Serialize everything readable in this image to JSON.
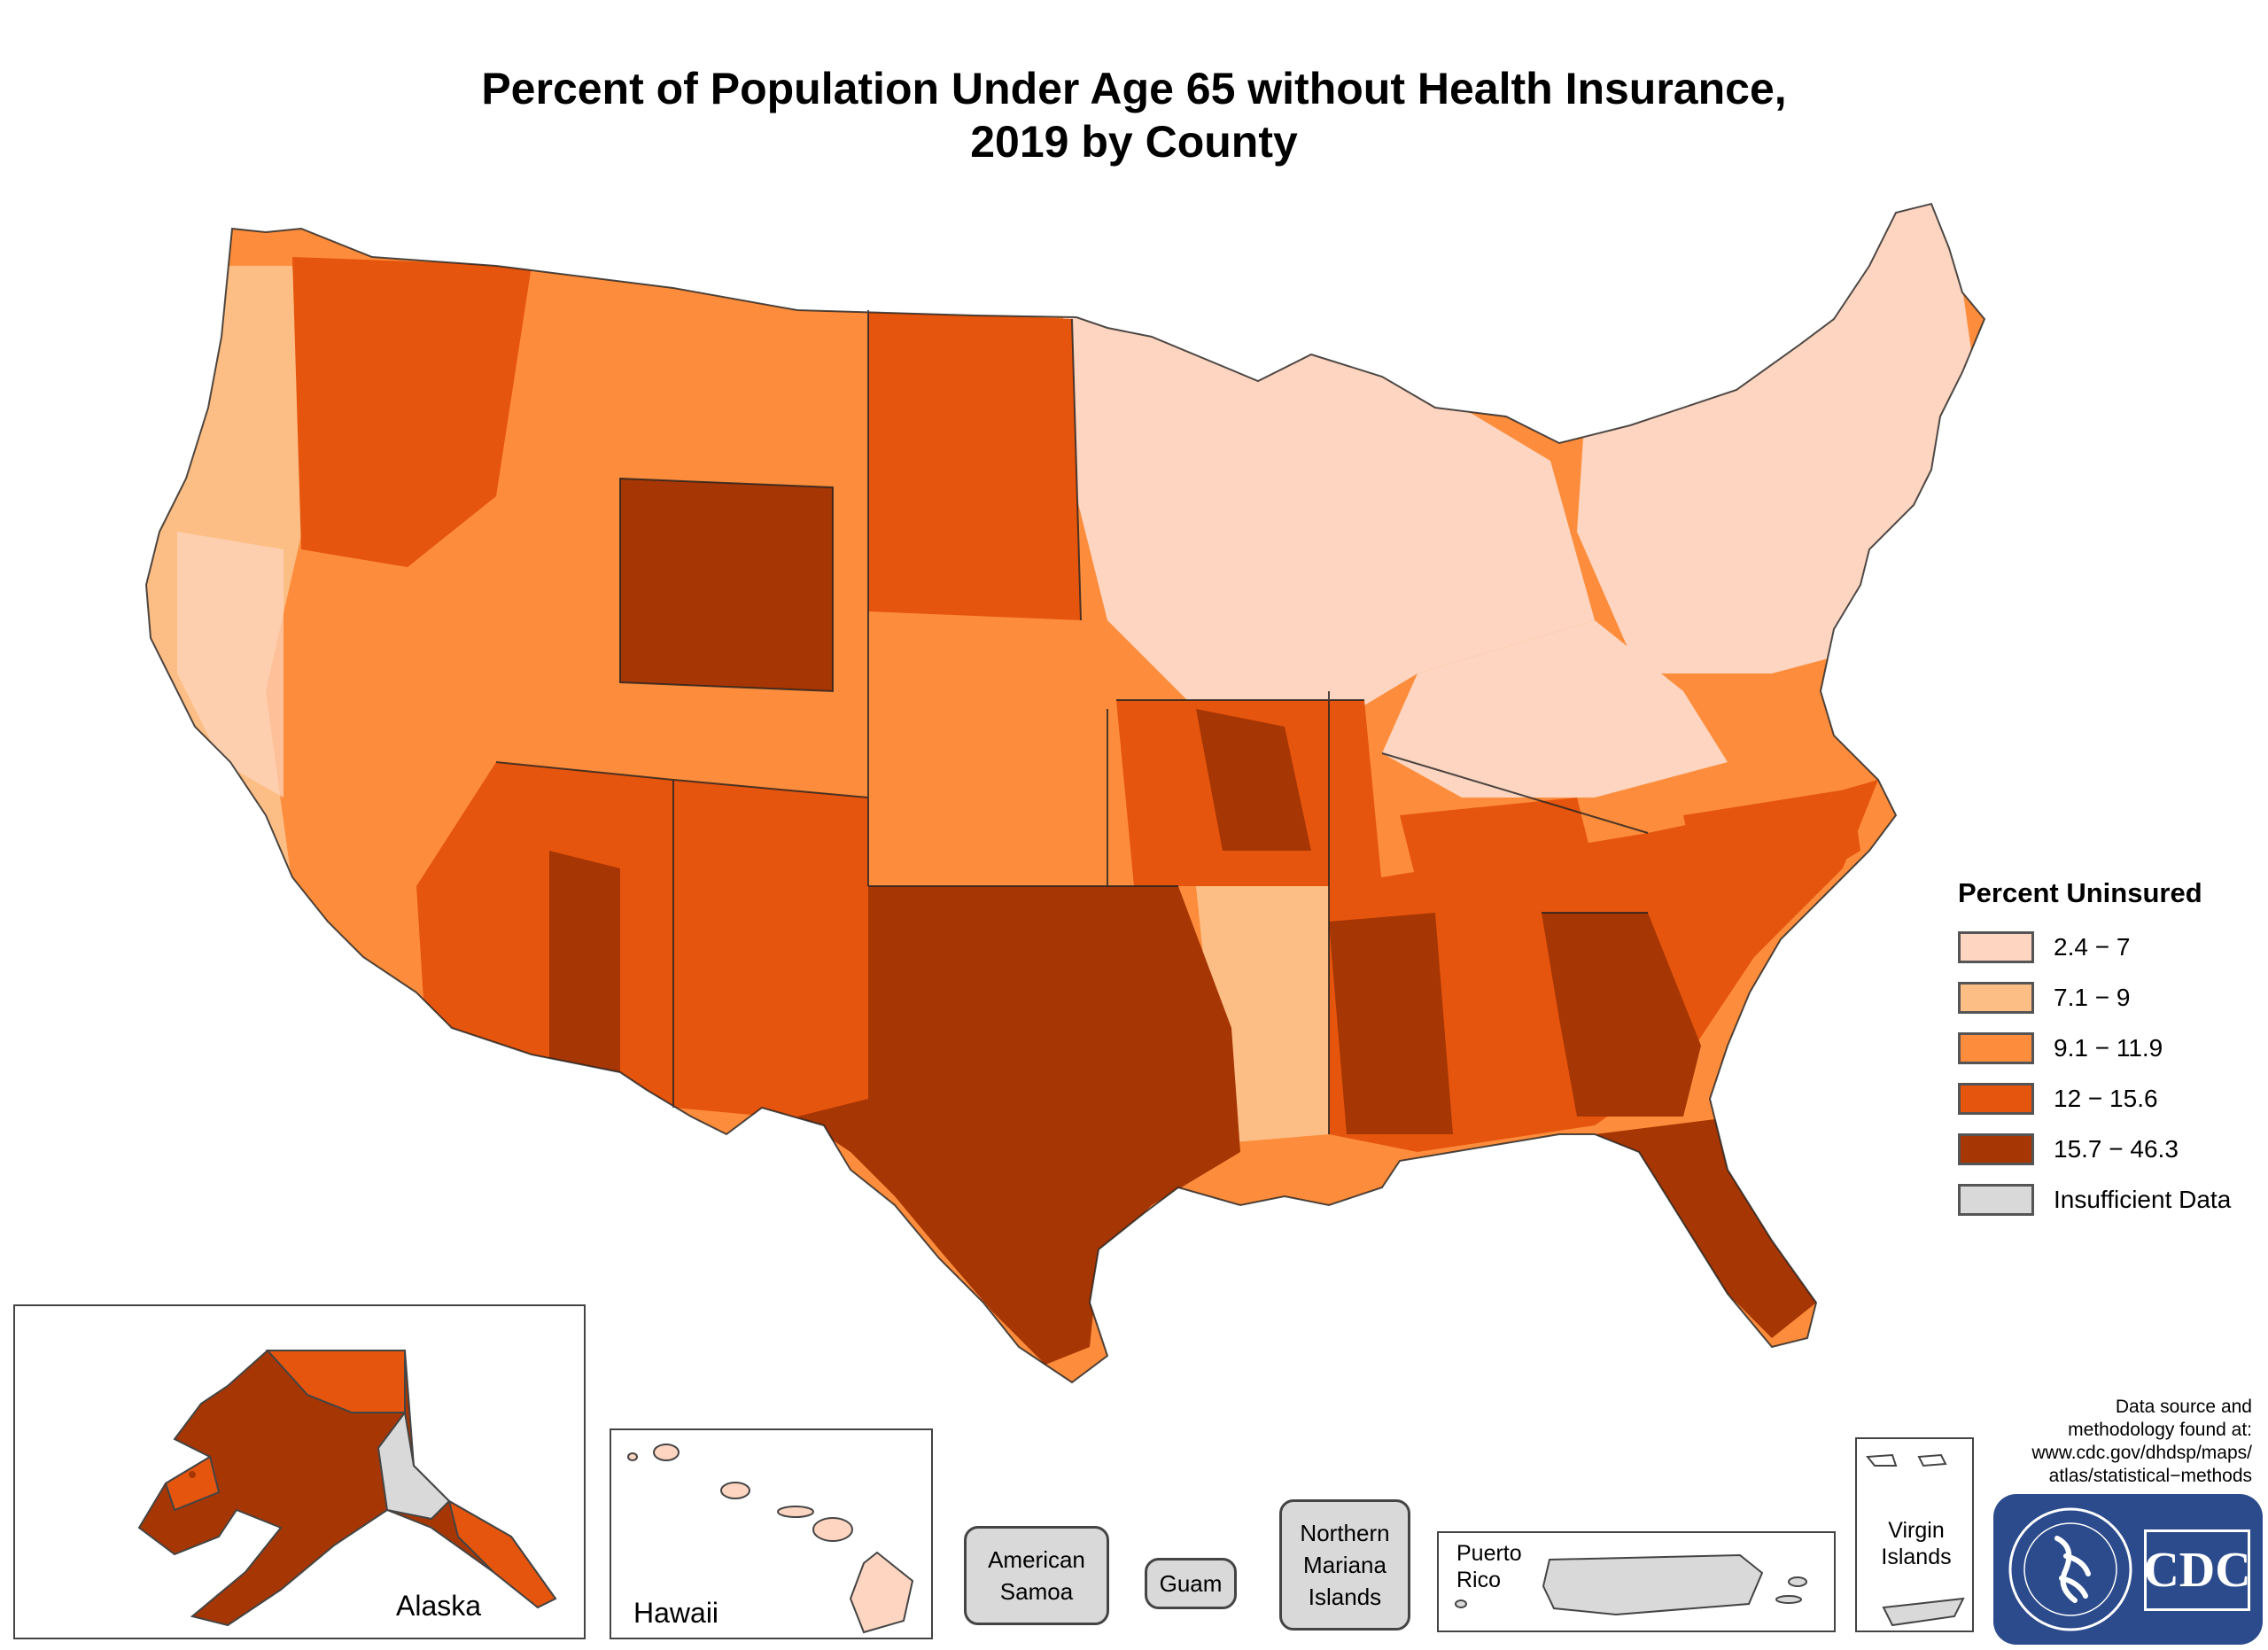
{
  "title": {
    "line1": "Percent of Population Under Age 65 without Health Insurance,",
    "line2": "2019 by County"
  },
  "legend": {
    "title": "Percent Uninsured",
    "items": [
      {
        "label": "2.4 − 7",
        "color": "#fdd5c0"
      },
      {
        "label": "7.1 − 9",
        "color": "#fdbe85"
      },
      {
        "label": "9.1 − 11.9",
        "color": "#fd8d3c"
      },
      {
        "label": "12 − 15.6",
        "color": "#e6550d"
      },
      {
        "label": "15.7 − 46.3",
        "color": "#a63603"
      },
      {
        "label": "Insufficient Data",
        "color": "#d9d9d9"
      }
    ]
  },
  "insets": {
    "alaska": "Alaska",
    "hawaii": "Hawaii",
    "puerto_rico": "Puerto\nRico",
    "virgin_islands": "Virgin\nIslands"
  },
  "territories": {
    "american_samoa": "American\nSamoa",
    "guam": "Guam",
    "northern_mariana": "Northern\nMariana\nIslands"
  },
  "source": {
    "text": "Data source and\nmethodology found at:\nwww.cdc.gov/dhdsp/maps/\natlas/statistical−methods"
  },
  "logo": {
    "text": "CDC"
  }
}
